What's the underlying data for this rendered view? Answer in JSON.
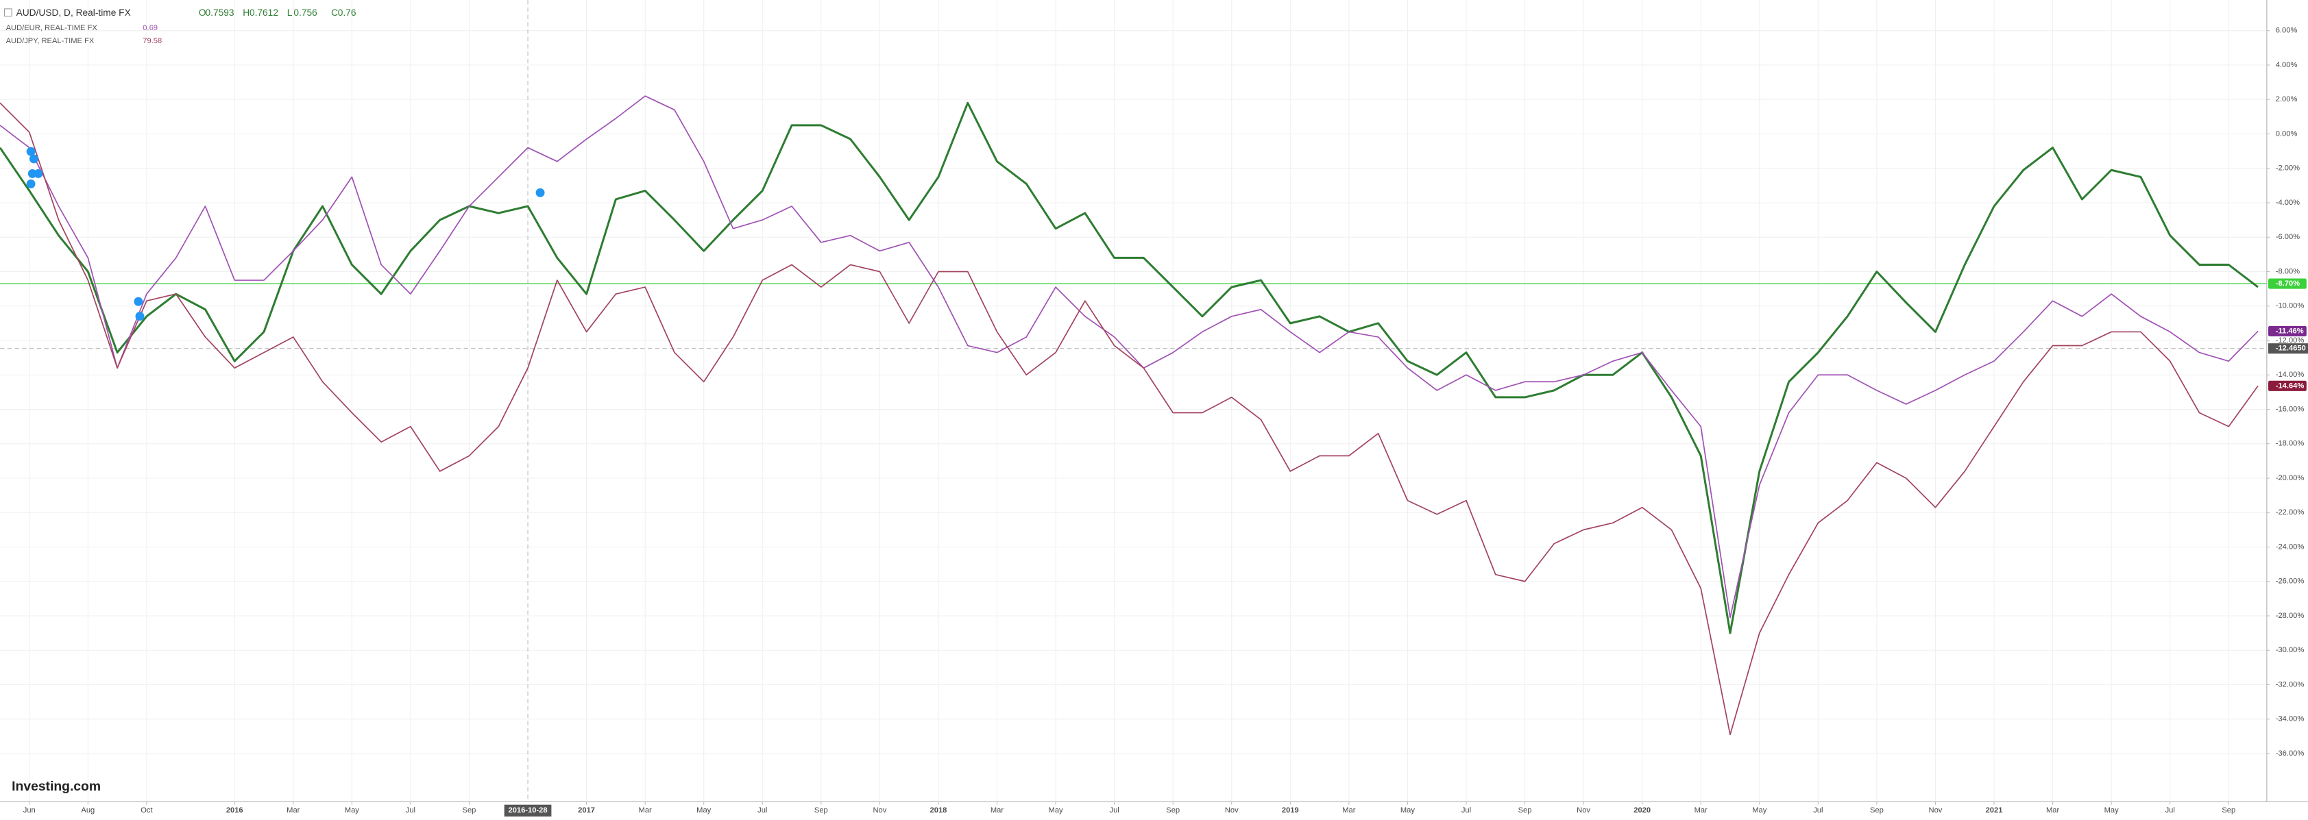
{
  "chart_data": {
    "type": "line",
    "xlim": [
      -1,
      76.3
    ],
    "ylim": [
      -38.8,
      7.78
    ],
    "grid": true,
    "x": [
      -1,
      0,
      1,
      2,
      3,
      4,
      5,
      6,
      7,
      8,
      9,
      10,
      11,
      12,
      13,
      14,
      15,
      16,
      17,
      18,
      19,
      20,
      21,
      22,
      23,
      24,
      25,
      26,
      27,
      28,
      29,
      30,
      31,
      32,
      33,
      34,
      35,
      36,
      37,
      38,
      39,
      40,
      41,
      42,
      43,
      44,
      45,
      46,
      47,
      48,
      49,
      50,
      51,
      52,
      53,
      54,
      55,
      56,
      57,
      58,
      59,
      60,
      61,
      62,
      63,
      64,
      65,
      66,
      67,
      68,
      69,
      70,
      71,
      72,
      73,
      74,
      75,
      76
    ],
    "xticks": [
      {
        "value": 0,
        "label": "Jun"
      },
      {
        "value": 2,
        "label": "Aug"
      },
      {
        "value": 4,
        "label": "Oct"
      },
      {
        "value": 7,
        "label": "2016"
      },
      {
        "value": 9,
        "label": "Mar"
      },
      {
        "value": 11,
        "label": "May"
      },
      {
        "value": 13,
        "label": "Jul"
      },
      {
        "value": 15,
        "label": "Sep"
      },
      {
        "value": 19,
        "label": "2017"
      },
      {
        "value": 21,
        "label": "Mar"
      },
      {
        "value": 23,
        "label": "May"
      },
      {
        "value": 25,
        "label": "Jul"
      },
      {
        "value": 27,
        "label": "Sep"
      },
      {
        "value": 29,
        "label": "Nov"
      },
      {
        "value": 31,
        "label": "2018"
      },
      {
        "value": 33,
        "label": "Mar"
      },
      {
        "value": 35,
        "label": "May"
      },
      {
        "value": 37,
        "label": "Jul"
      },
      {
        "value": 39,
        "label": "Sep"
      },
      {
        "value": 41,
        "label": "Nov"
      },
      {
        "value": 43,
        "label": "2019"
      },
      {
        "value": 45,
        "label": "Mar"
      },
      {
        "value": 47,
        "label": "May"
      },
      {
        "value": 49,
        "label": "Jul"
      },
      {
        "value": 51,
        "label": "Sep"
      },
      {
        "value": 53,
        "label": "Nov"
      },
      {
        "value": 55,
        "label": "2020"
      },
      {
        "value": 57,
        "label": "Mar"
      },
      {
        "value": 59,
        "label": "May"
      },
      {
        "value": 61,
        "label": "Jul"
      },
      {
        "value": 63,
        "label": "Sep"
      },
      {
        "value": 65,
        "label": "Nov"
      },
      {
        "value": 67,
        "label": "2021"
      },
      {
        "value": 69,
        "label": "Mar"
      },
      {
        "value": 71,
        "label": "May"
      },
      {
        "value": 73,
        "label": "Jul"
      },
      {
        "value": 75,
        "label": "Sep"
      }
    ],
    "yticks": [
      {
        "value": 6,
        "label": "6.00%"
      },
      {
        "value": 4,
        "label": "4.00%"
      },
      {
        "value": 2,
        "label": "2.00%"
      },
      {
        "value": 0,
        "label": "0.00%"
      },
      {
        "value": -2,
        "label": "-2.00%"
      },
      {
        "value": -4,
        "label": "-4.00%"
      },
      {
        "value": -6,
        "label": "-6.00%"
      },
      {
        "value": -8,
        "label": "-8.00%"
      },
      {
        "value": -10,
        "label": "-10.00%"
      },
      {
        "value": -12,
        "label": "-12.00%"
      },
      {
        "value": -14,
        "label": "-14.00%"
      },
      {
        "value": -16,
        "label": "-16.00%"
      },
      {
        "value": -18,
        "label": "-18.00%"
      },
      {
        "value": -20,
        "label": "-20.00%"
      },
      {
        "value": -22,
        "label": "-22.00%"
      },
      {
        "value": -24,
        "label": "-24.00%"
      },
      {
        "value": -26,
        "label": "-26.00%"
      },
      {
        "value": -28,
        "label": "-28.00%"
      },
      {
        "value": -30,
        "label": "-30.00%"
      },
      {
        "value": -32,
        "label": "-32.00%"
      },
      {
        "value": -34,
        "label": "-34.00%"
      },
      {
        "value": -36,
        "label": "-36.00%"
      }
    ],
    "series": [
      {
        "name": "AUD/USD, D, Real-time FX",
        "color": "#2e7d32",
        "ohlc": [
          {
            "label": "O",
            "value": 0.7593
          },
          {
            "label": "H",
            "value": 0.7612
          },
          {
            "label": "L",
            "value": 0.756
          },
          {
            "label": "C",
            "value": 0.76
          }
        ],
        "last": {
          "value": -8.7,
          "label": "-8.70%"
        },
        "values": [
          -0.8,
          -3.3,
          -5.9,
          -8.0,
          -12.7,
          -10.6,
          -9.3,
          -10.2,
          -13.2,
          -11.5,
          -6.8,
          -4.2,
          -7.6,
          -9.3,
          -6.8,
          -5.0,
          -4.2,
          -4.6,
          -4.2,
          -7.2,
          -9.3,
          -3.8,
          -3.3,
          -5.0,
          -6.8,
          -5.0,
          -3.3,
          0.5,
          0.5,
          -0.3,
          -2.5,
          -5.0,
          -2.5,
          1.8,
          -1.6,
          -2.9,
          -5.5,
          -4.6,
          -7.2,
          -7.2,
          -8.9,
          -10.6,
          -8.9,
          -8.5,
          -11.0,
          -10.6,
          -11.5,
          -11.0,
          -13.2,
          -14.0,
          -12.7,
          -15.3,
          -15.3,
          -14.9,
          -14.0,
          -14.0,
          -12.7,
          -15.3,
          -18.7,
          -29.0,
          -19.6,
          -14.4,
          -12.7,
          -10.6,
          -8.0,
          -9.8,
          -11.5,
          -7.6,
          -4.2,
          -2.1,
          -0.8,
          -3.8,
          -2.1,
          -2.5,
          -5.9,
          -7.6,
          -7.6,
          -8.9
        ]
      },
      {
        "name": "AUD/EUR, REAL-TIME FX",
        "color": "#a052b4",
        "last_price": 0.69,
        "last": {
          "value": -11.46,
          "label": "-11.46%"
        },
        "values": [
          0.5,
          -0.8,
          -4.2,
          -7.2,
          -13.6,
          -9.3,
          -7.2,
          -4.2,
          -8.5,
          -8.5,
          -6.8,
          -5.0,
          -2.5,
          -7.6,
          -9.3,
          -6.8,
          -4.2,
          -2.5,
          -0.8,
          -1.6,
          -0.3,
          0.9,
          2.2,
          1.4,
          -1.6,
          -5.5,
          -5.0,
          -4.2,
          -6.3,
          -5.9,
          -6.8,
          -6.3,
          -8.9,
          -12.3,
          -12.7,
          -11.8,
          -8.9,
          -10.6,
          -11.8,
          -13.6,
          -12.7,
          -11.5,
          -10.6,
          -10.2,
          -11.5,
          -12.7,
          -11.5,
          -11.8,
          -13.6,
          -14.9,
          -14.0,
          -14.9,
          -14.4,
          -14.4,
          -14.0,
          -13.2,
          -12.7,
          -14.9,
          -17.0,
          -28.1,
          -20.4,
          -16.2,
          -14.0,
          -14.0,
          -14.9,
          -15.7,
          -14.9,
          -14.0,
          -13.2,
          -11.5,
          -9.7,
          -10.6,
          -9.3,
          -10.6,
          -11.5,
          -12.7,
          -13.2,
          -11.46
        ]
      },
      {
        "name": "AUD/JPY, REAL-TIME FX",
        "color": "#a3445f",
        "last_price": 79.58,
        "last": {
          "value": -14.64,
          "label": "-14.64%"
        },
        "values": [
          1.8,
          0.1,
          -5.0,
          -8.5,
          -13.6,
          -9.7,
          -9.3,
          -11.8,
          -13.6,
          -12.7,
          -11.8,
          -14.4,
          -16.2,
          -17.9,
          -17.0,
          -19.6,
          -18.7,
          -17.0,
          -13.6,
          -8.5,
          -11.5,
          -9.3,
          -8.9,
          -12.7,
          -14.4,
          -11.8,
          -8.5,
          -7.6,
          -8.9,
          -7.6,
          -8.0,
          -11.0,
          -8.0,
          -8.0,
          -11.5,
          -14.0,
          -12.7,
          -9.7,
          -12.3,
          -13.6,
          -16.2,
          -16.2,
          -15.3,
          -16.6,
          -19.6,
          -18.7,
          -18.7,
          -17.4,
          -21.3,
          -22.1,
          -21.3,
          -25.6,
          -26.0,
          -23.8,
          -23.0,
          -22.6,
          -21.7,
          -23.0,
          -26.4,
          -34.9,
          -29.0,
          -25.6,
          -22.6,
          -21.3,
          -19.1,
          -20.0,
          -21.7,
          -19.6,
          -17.0,
          -14.4,
          -12.3,
          -12.3,
          -11.5,
          -11.5,
          -13.2,
          -16.2,
          -17.0,
          -14.64
        ]
      }
    ],
    "crosshair": {
      "x": 17,
      "x_label": "2016-10-28",
      "y": -12.465,
      "y_label": "-12.4650"
    },
    "watermark": "Investing.com"
  }
}
